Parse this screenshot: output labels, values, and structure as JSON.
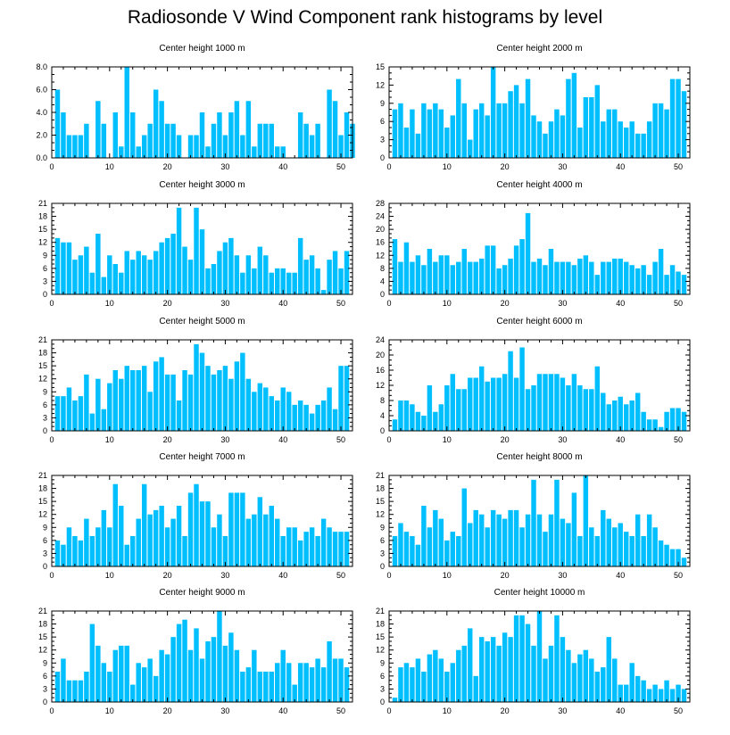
{
  "figure": {
    "title": "Radiosonde V Wind Component rank histograms by level"
  },
  "colors": {
    "bar": "#00bfff",
    "axis": "#000000"
  },
  "chart_data": [
    {
      "type": "bar",
      "title": "Center height 1000 m",
      "xlim": [
        0,
        52
      ],
      "ylim": [
        0,
        8
      ],
      "xticks": [
        0,
        10,
        20,
        30,
        40,
        50
      ],
      "yticks": [
        0,
        2,
        4,
        6,
        8
      ],
      "ytick_labels": [
        "0.0",
        "2.0",
        "4.0",
        "6.0",
        "8.0"
      ],
      "values": [
        6,
        4,
        2,
        2,
        2,
        3,
        0,
        5,
        3,
        0,
        4,
        1,
        8,
        4,
        1,
        2,
        3,
        6,
        5,
        3,
        3,
        2,
        0,
        2,
        2,
        4,
        1,
        3,
        4,
        2,
        4,
        5,
        2,
        5,
        1,
        3,
        3,
        3,
        1,
        1,
        0,
        0,
        4,
        3,
        2,
        3,
        0,
        6,
        5,
        2,
        4,
        3
      ]
    },
    {
      "type": "bar",
      "title": "Center height 2000 m",
      "xlim": [
        0,
        52
      ],
      "ylim": [
        0,
        15
      ],
      "xticks": [
        0,
        10,
        20,
        30,
        40,
        50
      ],
      "yticks": [
        0,
        3,
        6,
        9,
        12,
        15
      ],
      "ytick_labels": [
        "0",
        "3",
        "6",
        "9",
        "12",
        "15"
      ],
      "values": [
        8,
        9,
        5,
        8,
        4,
        9,
        8,
        9,
        8,
        5,
        7,
        13,
        9,
        3,
        8,
        9,
        7,
        15,
        9,
        9,
        11,
        12,
        9,
        13,
        7,
        6,
        4,
        6,
        8,
        7,
        13,
        14,
        5,
        10,
        10,
        12,
        6,
        8,
        8,
        6,
        5,
        6,
        4,
        4,
        6,
        9,
        9,
        8,
        13,
        13,
        11
      ]
    },
    {
      "type": "bar",
      "title": "Center height 3000 m",
      "xlim": [
        0,
        52
      ],
      "ylim": [
        0,
        21
      ],
      "xticks": [
        0,
        10,
        20,
        30,
        40,
        50
      ],
      "yticks": [
        0,
        3,
        6,
        9,
        12,
        15,
        18,
        21
      ],
      "ytick_labels": [
        "0",
        "3",
        "6",
        "9",
        "12",
        "15",
        "18",
        "21"
      ],
      "values": [
        13,
        12,
        12,
        8,
        9,
        11,
        5,
        14,
        4,
        9,
        7,
        5,
        10,
        8,
        10,
        9,
        8,
        10,
        12,
        13,
        14,
        20,
        11,
        8,
        20,
        15,
        6,
        7,
        10,
        12,
        13,
        9,
        5,
        9,
        6,
        11,
        9,
        5,
        6,
        6,
        5,
        5,
        13,
        8,
        9,
        6,
        1,
        8,
        10,
        6,
        10
      ]
    },
    {
      "type": "bar",
      "title": "Center height 4000 m",
      "xlim": [
        0,
        52
      ],
      "ylim": [
        0,
        28
      ],
      "xticks": [
        0,
        10,
        20,
        30,
        40,
        50
      ],
      "yticks": [
        0,
        4,
        8,
        12,
        16,
        20,
        24,
        28
      ],
      "ytick_labels": [
        "0",
        "4",
        "8",
        "12",
        "16",
        "20",
        "24",
        "28"
      ],
      "values": [
        17,
        10,
        16,
        10,
        12,
        9,
        14,
        10,
        12,
        12,
        9,
        10,
        14,
        10,
        10,
        11,
        15,
        15,
        8,
        9,
        11,
        15,
        17,
        25,
        10,
        11,
        9,
        14,
        10,
        10,
        10,
        9,
        11,
        12,
        10,
        6,
        10,
        10,
        11,
        11,
        10,
        9,
        8,
        9,
        6,
        10,
        14,
        6,
        9,
        7,
        6
      ]
    },
    {
      "type": "bar",
      "title": "Center height 5000 m",
      "xlim": [
        0,
        52
      ],
      "ylim": [
        0,
        21
      ],
      "xticks": [
        0,
        10,
        20,
        30,
        40,
        50
      ],
      "yticks": [
        0,
        3,
        6,
        9,
        12,
        15,
        18,
        21
      ],
      "ytick_labels": [
        "0",
        "3",
        "6",
        "9",
        "12",
        "15",
        "18",
        "21"
      ],
      "values": [
        8,
        8,
        10,
        7,
        8,
        13,
        4,
        12,
        5,
        11,
        14,
        12,
        15,
        14,
        14,
        15,
        9,
        16,
        17,
        13,
        13,
        7,
        14,
        13,
        20,
        18,
        15,
        13,
        14,
        15,
        12,
        16,
        18,
        12,
        9,
        11,
        10,
        8,
        7,
        10,
        9,
        6,
        7,
        6,
        4,
        6,
        7,
        10,
        5,
        15,
        15
      ]
    },
    {
      "type": "bar",
      "title": "Center height 6000 m",
      "xlim": [
        0,
        52
      ],
      "ylim": [
        0,
        24
      ],
      "xticks": [
        0,
        10,
        20,
        30,
        40,
        50
      ],
      "yticks": [
        0,
        4,
        8,
        12,
        16,
        20,
        24
      ],
      "ytick_labels": [
        "0",
        "4",
        "8",
        "12",
        "16",
        "20",
        "24"
      ],
      "values": [
        3,
        8,
        8,
        7,
        5,
        4,
        12,
        5,
        7,
        12,
        15,
        11,
        11,
        14,
        14,
        17,
        13,
        14,
        14,
        15,
        21,
        14,
        22,
        11,
        12,
        15,
        15,
        15,
        15,
        14,
        12,
        15,
        12,
        11,
        11,
        17,
        10,
        7,
        8,
        9,
        7,
        8,
        10,
        5,
        3,
        3,
        1,
        5,
        6,
        6,
        5
      ]
    },
    {
      "type": "bar",
      "title": "Center height 7000 m",
      "xlim": [
        0,
        52
      ],
      "ylim": [
        0,
        21
      ],
      "xticks": [
        0,
        10,
        20,
        30,
        40,
        50
      ],
      "yticks": [
        0,
        3,
        6,
        9,
        12,
        15,
        18,
        21
      ],
      "ytick_labels": [
        "0",
        "3",
        "6",
        "9",
        "12",
        "15",
        "18",
        "21"
      ],
      "values": [
        6,
        5,
        9,
        7,
        6,
        11,
        7,
        9,
        13,
        9,
        19,
        14,
        5,
        7,
        11,
        19,
        12,
        13,
        14,
        9,
        11,
        14,
        7,
        17,
        19,
        15,
        15,
        9,
        12,
        7,
        17,
        17,
        17,
        11,
        12,
        16,
        12,
        14,
        11,
        7,
        9,
        9,
        6,
        8,
        9,
        7,
        11,
        9,
        8,
        8,
        8
      ]
    },
    {
      "type": "bar",
      "title": "Center height 8000 m",
      "xlim": [
        0,
        52
      ],
      "ylim": [
        0,
        21
      ],
      "xticks": [
        0,
        10,
        20,
        30,
        40,
        50
      ],
      "yticks": [
        0,
        3,
        6,
        9,
        12,
        15,
        18,
        21
      ],
      "ytick_labels": [
        "0",
        "3",
        "6",
        "9",
        "12",
        "15",
        "18",
        "21"
      ],
      "values": [
        7,
        10,
        8,
        7,
        5,
        14,
        9,
        13,
        11,
        6,
        8,
        7,
        18,
        10,
        13,
        12,
        9,
        13,
        12,
        11,
        13,
        13,
        9,
        12,
        20,
        12,
        8,
        12,
        20,
        11,
        10,
        17,
        7,
        21,
        9,
        7,
        13,
        11,
        9,
        10,
        8,
        7,
        12,
        7,
        12,
        9,
        6,
        5,
        4,
        4,
        2
      ]
    },
    {
      "type": "bar",
      "title": "Center height 9000 m",
      "xlim": [
        0,
        52
      ],
      "ylim": [
        0,
        21
      ],
      "xticks": [
        0,
        10,
        20,
        30,
        40,
        50
      ],
      "yticks": [
        0,
        3,
        6,
        9,
        12,
        15,
        18,
        21
      ],
      "ytick_labels": [
        "0",
        "3",
        "6",
        "9",
        "12",
        "15",
        "18",
        "21"
      ],
      "values": [
        7,
        10,
        5,
        5,
        5,
        7,
        18,
        13,
        9,
        7,
        12,
        13,
        13,
        4,
        9,
        8,
        10,
        6,
        12,
        11,
        15,
        18,
        19,
        12,
        17,
        10,
        14,
        15,
        21,
        13,
        16,
        12,
        7,
        8,
        12,
        7,
        7,
        7,
        9,
        12,
        9,
        4,
        9,
        9,
        8,
        10,
        8,
        14,
        10,
        10,
        8
      ]
    },
    {
      "type": "bar",
      "title": "Center height 10000 m",
      "xlim": [
        0,
        52
      ],
      "ylim": [
        0,
        21
      ],
      "xticks": [
        0,
        10,
        20,
        30,
        40,
        50
      ],
      "yticks": [
        0,
        3,
        6,
        9,
        12,
        15,
        18,
        21
      ],
      "ytick_labels": [
        "0",
        "3",
        "6",
        "9",
        "12",
        "15",
        "18",
        "21"
      ],
      "values": [
        1,
        8,
        9,
        8,
        10,
        7,
        11,
        12,
        10,
        7,
        9,
        12,
        13,
        17,
        6,
        15,
        14,
        15,
        13,
        16,
        15,
        20,
        20,
        18,
        13,
        21,
        10,
        13,
        20,
        15,
        12,
        9,
        11,
        12,
        10,
        7,
        8,
        15,
        10,
        4,
        4,
        9,
        6,
        5,
        3,
        4,
        3,
        5,
        3,
        4,
        3
      ]
    }
  ]
}
